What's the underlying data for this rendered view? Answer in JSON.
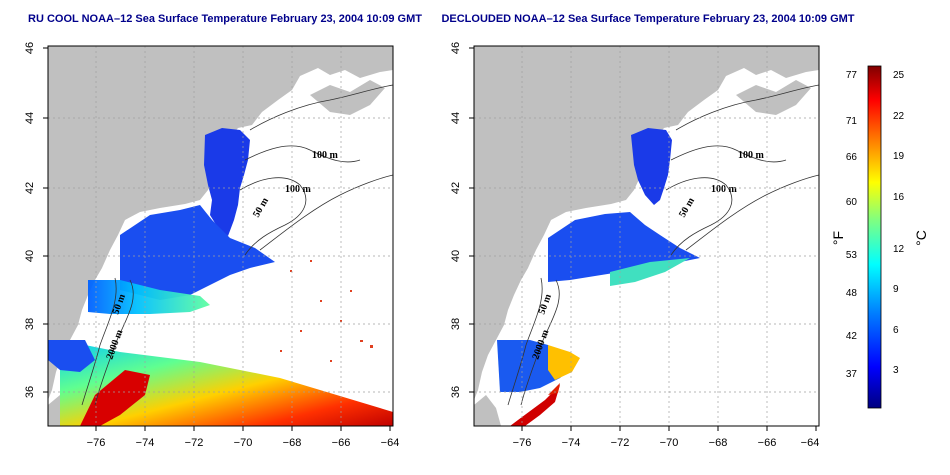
{
  "maps": [
    {
      "title": "RU COOL NOAA–12 Sea Surface Temperature February 23, 2004 10:09 GMT",
      "x_ticks": [
        "−76",
        "−74",
        "−72",
        "−70",
        "−68",
        "−66",
        "−64"
      ],
      "y_ticks": [
        "36",
        "38",
        "40",
        "42",
        "44",
        "46"
      ],
      "contour_labels": [
        "100 m",
        "100 m",
        "50 m",
        "50 m",
        "2000 m"
      ]
    },
    {
      "title": "DECLOUDED NOAA–12 Sea Surface Temperature February 23, 2004 10:09 GMT",
      "x_ticks": [
        "−76",
        "−74",
        "−72",
        "−70",
        "−68",
        "−66",
        "−64"
      ],
      "y_ticks": [
        "36",
        "38",
        "40",
        "42",
        "44",
        "46"
      ],
      "contour_labels": [
        "100 m",
        "100 m",
        "50 m",
        "50 m",
        "2000 m"
      ]
    }
  ],
  "colorbar": {
    "fahrenheit_ticks": [
      "77",
      "71",
      "66",
      "60",
      "53",
      "48",
      "42",
      "37"
    ],
    "celsius_ticks": [
      "25",
      "22",
      "19",
      "16",
      "12",
      "9",
      "6",
      "3"
    ],
    "fahrenheit_unit": "°F",
    "celsius_unit": "°C",
    "colors": [
      "#000080",
      "#0000ff",
      "#0080ff",
      "#00ffff",
      "#80ff80",
      "#ffff00",
      "#ff8000",
      "#ff0000",
      "#800000"
    ]
  },
  "style": {
    "land": "#c0c0c0",
    "grid": "#a0a0a0",
    "title_color": "#00008b"
  }
}
